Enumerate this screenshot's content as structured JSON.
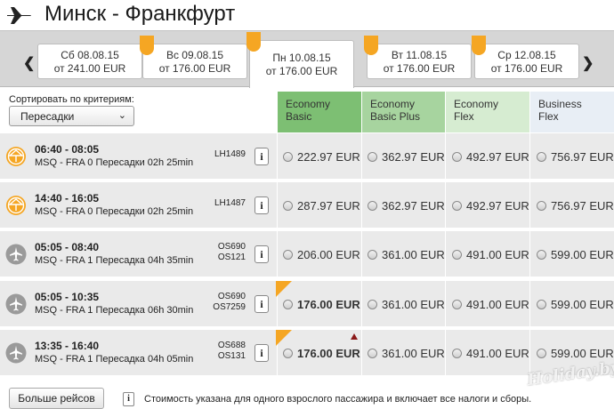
{
  "header": {
    "title": "Минск - Франкфурт",
    "icon": "airplane-icon"
  },
  "dates": [
    {
      "line1": "Сб 08.08.15",
      "line2": "от 241.00 EUR",
      "tagged": false,
      "active": false
    },
    {
      "line1": "Вс 09.08.15",
      "line2": "от 176.00 EUR",
      "tagged": true,
      "active": false
    },
    {
      "line1": "Пн 10.08.15",
      "line2": "от 176.00 EUR",
      "tagged": true,
      "active": true
    },
    {
      "line1": "Вт 11.08.15",
      "line2": "от 176.00 EUR",
      "tagged": true,
      "active": false
    },
    {
      "line1": "Ср 12.08.15",
      "line2": "от 176.00 EUR",
      "tagged": true,
      "active": false
    }
  ],
  "sort": {
    "label": "Сортировать по критериям:",
    "selected": "Пересадки"
  },
  "fare_classes": [
    {
      "line1": "Economy",
      "line2": "Basic",
      "color": "#7dbf73"
    },
    {
      "line1": "Economy",
      "line2": "Basic Plus",
      "color": "#a7d49f"
    },
    {
      "line1": "Economy",
      "line2": "Flex",
      "color": "#d6ecd1"
    },
    {
      "line1": "Business",
      "line2": "Flex",
      "color": "#e8eef5"
    }
  ],
  "flights": [
    {
      "time": "06:40 - 08:05",
      "route": "MSQ - FRA  0 Пересадки  02h 25min",
      "flight_no": [
        "LH1489"
      ],
      "airline": "lufthansa",
      "prices": [
        "222.97 EUR",
        "362.97 EUR",
        "492.97 EUR",
        "756.97 EUR"
      ],
      "best": false,
      "new": false
    },
    {
      "time": "14:40 - 16:05",
      "route": "MSQ - FRA  0 Пересадки  02h 25min",
      "flight_no": [
        "LH1487"
      ],
      "airline": "lufthansa",
      "prices": [
        "287.97 EUR",
        "362.97 EUR",
        "492.97 EUR",
        "756.97 EUR"
      ],
      "best": false,
      "new": false
    },
    {
      "time": "05:05 - 08:40",
      "route": "MSQ - FRA  1 Пересадка  04h 35min",
      "flight_no": [
        "OS690",
        "OS121"
      ],
      "airline": "other",
      "prices": [
        "206.00 EUR",
        "361.00 EUR",
        "491.00 EUR",
        "599.00 EUR"
      ],
      "best": false,
      "new": false
    },
    {
      "time": "05:05 - 10:35",
      "route": "MSQ - FRA  1 Пересадка  06h 30min",
      "flight_no": [
        "OS690",
        "OS7259"
      ],
      "airline": "other",
      "prices": [
        "176.00 EUR",
        "361.00 EUR",
        "491.00 EUR",
        "599.00 EUR"
      ],
      "best": true,
      "new": false
    },
    {
      "time": "13:35 - 16:40",
      "route": "MSQ - FRA  1 Пересадка  04h 05min",
      "flight_no": [
        "OS688",
        "OS131"
      ],
      "airline": "other",
      "prices": [
        "176.00 EUR",
        "361.00 EUR",
        "491.00 EUR",
        "599.00 EUR"
      ],
      "best": true,
      "new": true
    }
  ],
  "footer": {
    "more_button": "Больше рейсов",
    "info_icon": "i",
    "note": "Стоимость указана для одного взрослого пассажира и включает все налоги и сборы."
  },
  "watermark": "Holiday.by",
  "colors": {
    "accent_orange": "#f5a623",
    "lufthansa_circle": "#f5a623",
    "other_circle": "#9a9a9a"
  }
}
